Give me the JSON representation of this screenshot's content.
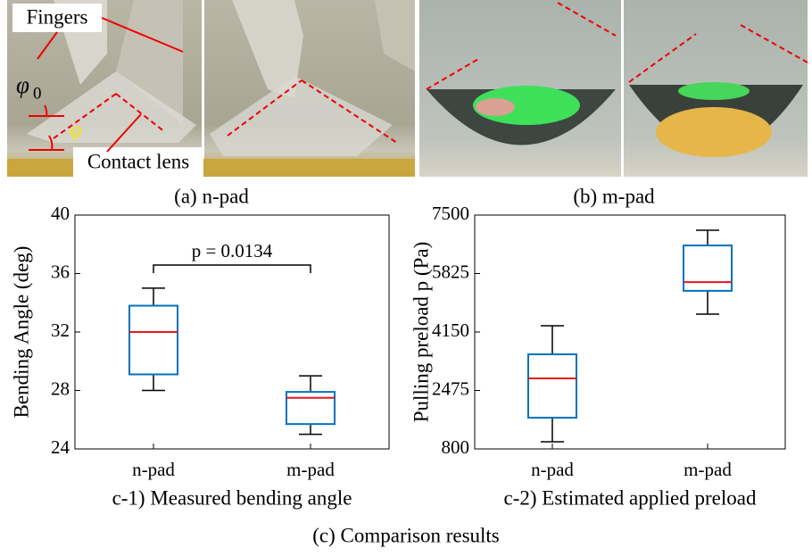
{
  "photos": {
    "n_pad": {
      "caption": "(a) n-pad",
      "fingers_label": "Fingers",
      "lens_label": "Contact lens",
      "phi0": {
        "symbol": "φ",
        "subscript": "0"
      },
      "phi": "φ"
    },
    "m_pad": {
      "caption": "(b) m-pad"
    }
  },
  "caption": "(c) Comparison results",
  "chart_data": [
    {
      "type": "box",
      "xlabel": "c-1) Measured bending angle",
      "ylabel": "Bending Angle (deg)",
      "categories": [
        "n-pad",
        "m-pad"
      ],
      "boxes": [
        {
          "whisker_low": 28,
          "q1": 29.1,
          "median": 32,
          "q3": 33.8,
          "whisker_high": 35
        },
        {
          "whisker_low": 25,
          "q1": 25.7,
          "median": 27.5,
          "q3": 27.9,
          "whisker_high": 29
        }
      ],
      "box_color": "#0072bd",
      "median_color": "#e8161b",
      "whisker_color": "#000000",
      "annotation": "p = 0.0134",
      "ylim": [
        24,
        40
      ],
      "yticks": [
        24,
        28,
        32,
        36,
        40
      ]
    },
    {
      "type": "box",
      "xlabel": "c-2) Estimated applied preload",
      "ylabel": "Pulling preload p (Pa)",
      "categories": [
        "n-pad",
        "m-pad"
      ],
      "boxes": [
        {
          "whisker_low": 1005,
          "q1": 1695,
          "median": 2820,
          "q3": 3510,
          "whisker_high": 4330
        },
        {
          "whisker_low": 4660,
          "q1": 5330,
          "median": 5580,
          "q3": 6630,
          "whisker_high": 7065
        }
      ],
      "box_color": "#0072bd",
      "median_color": "#e8161b",
      "whisker_color": "#000000",
      "ylim": [
        800,
        7500
      ],
      "yticks": [
        800,
        2475,
        4150,
        5825,
        7500
      ]
    }
  ]
}
